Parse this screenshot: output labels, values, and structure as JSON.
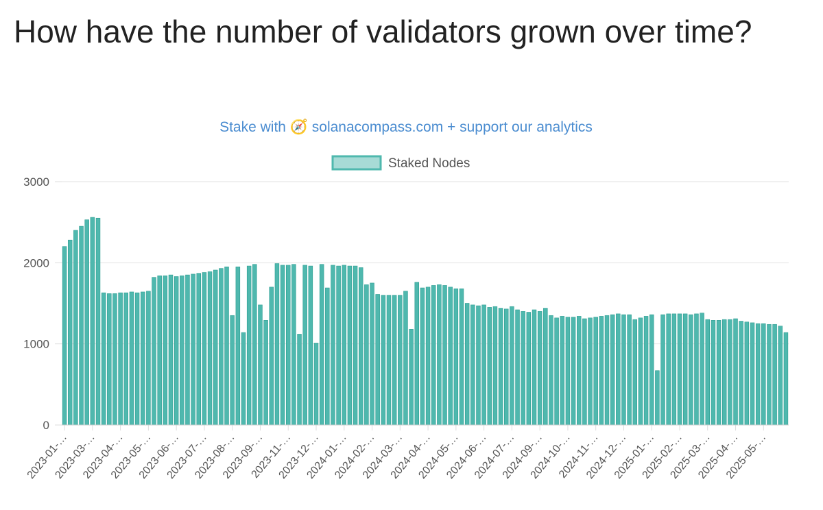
{
  "chart_data": {
    "type": "bar",
    "title": "How have the number of validators grown over time?",
    "subtitle": "Stake with 🧭 solanacompass.com + support our analytics",
    "series": [
      {
        "name": "Staked Nodes",
        "color": "#4fb8ae",
        "values": [
          2200,
          2280,
          2400,
          2450,
          2530,
          2560,
          2550,
          1630,
          1620,
          1620,
          1630,
          1630,
          1640,
          1630,
          1640,
          1650,
          1820,
          1840,
          1840,
          1850,
          1830,
          1840,
          1850,
          1860,
          1870,
          1880,
          1890,
          1910,
          1930,
          1950,
          1350,
          1950,
          1140,
          1960,
          1980,
          1480,
          1290,
          1700,
          1990,
          1970,
          1970,
          1980,
          1120,
          1970,
          1960,
          1010,
          1980,
          1690,
          1970,
          1960,
          1970,
          1960,
          1960,
          1940,
          1730,
          1750,
          1610,
          1600,
          1600,
          1600,
          1600,
          1650,
          1180,
          1760,
          1690,
          1700,
          1720,
          1730,
          1720,
          1700,
          1680,
          1680,
          1500,
          1480,
          1470,
          1480,
          1450,
          1460,
          1440,
          1430,
          1460,
          1420,
          1400,
          1390,
          1420,
          1400,
          1440,
          1350,
          1320,
          1340,
          1330,
          1330,
          1340,
          1310,
          1320,
          1330,
          1340,
          1350,
          1360,
          1370,
          1360,
          1360,
          1300,
          1320,
          1340,
          1360,
          670,
          1360,
          1370,
          1370,
          1370,
          1370,
          1360,
          1370,
          1380,
          1300,
          1290,
          1290,
          1300,
          1300,
          1310,
          1280,
          1270,
          1260,
          1250,
          1250,
          1240,
          1240,
          1220,
          1140
        ]
      }
    ],
    "categories": [
      "2023-01-…",
      null,
      null,
      null,
      null,
      "2023-03-…",
      null,
      null,
      null,
      null,
      "2023-04-…",
      null,
      null,
      null,
      null,
      "2023-05-…",
      null,
      null,
      null,
      null,
      "2023-06-…",
      null,
      null,
      null,
      null,
      "2023-07-…",
      null,
      null,
      null,
      null,
      "2023-08-…",
      null,
      null,
      null,
      null,
      "2023-09-…",
      null,
      null,
      null,
      null,
      "2023-11-…",
      null,
      null,
      null,
      null,
      "2023-12-…",
      null,
      null,
      null,
      null,
      "2024-01-…",
      null,
      null,
      null,
      null,
      "2024-02-…",
      null,
      null,
      null,
      null,
      "2024-03-…",
      null,
      null,
      null,
      null,
      "2024-04-…",
      null,
      null,
      null,
      null,
      "2024-05-…",
      null,
      null,
      null,
      null,
      "2024-06-…",
      null,
      null,
      null,
      null,
      "2024-07-…",
      null,
      null,
      null,
      null,
      "2024-09-…",
      null,
      null,
      null,
      null,
      "2024-10-…",
      null,
      null,
      null,
      null,
      "2024-11-…",
      null,
      null,
      null,
      null,
      "2024-12-…",
      null,
      null,
      null,
      null,
      "2025-01-…",
      null,
      null,
      null,
      null,
      "2025-02-…",
      null,
      null,
      null,
      null,
      "2025-03-…",
      null,
      null,
      null,
      null,
      "2025-04-…",
      null,
      null,
      null,
      null,
      "2025-05-…",
      null,
      null,
      null,
      null
    ],
    "ylim": [
      0,
      3000
    ],
    "yticks": [
      0,
      1000,
      2000,
      3000
    ],
    "grid": true,
    "legend": "top"
  }
}
